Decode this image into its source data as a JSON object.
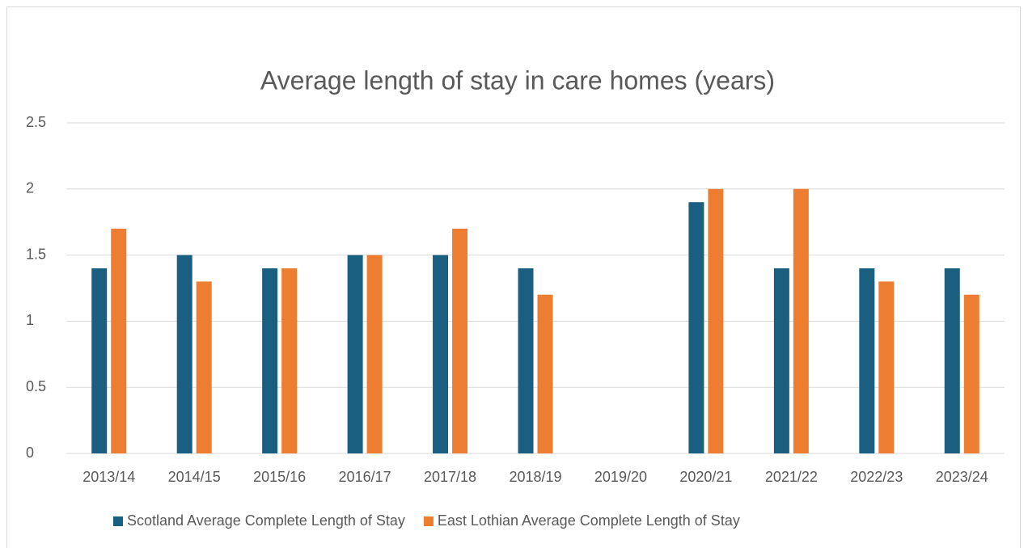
{
  "chart_data": {
    "type": "bar",
    "title": "Average length of stay in care homes (years)",
    "categories": [
      "2013/14",
      "2014/15",
      "2015/16",
      "2016/17",
      "2017/18",
      "2018/19",
      "2019/20",
      "2020/21",
      "2021/22",
      "2022/23",
      "2023/24"
    ],
    "series": [
      {
        "name": "Scotland Average Complete Length of Stay",
        "color": "#1a5f80",
        "values": [
          1.4,
          1.5,
          1.4,
          1.5,
          1.5,
          1.4,
          null,
          1.9,
          1.4,
          1.4,
          1.4
        ]
      },
      {
        "name": "East Lothian Average Complete Length of Stay",
        "color": "#ed7d31",
        "values": [
          1.7,
          1.3,
          1.4,
          1.5,
          1.7,
          1.2,
          null,
          2,
          2,
          1.3,
          1.2
        ]
      }
    ],
    "ylim": [
      0,
      2.5
    ],
    "yticks": [
      0,
      0.5,
      1,
      1.5,
      2,
      2.5
    ],
    "grid": true,
    "legend": "bottom"
  }
}
